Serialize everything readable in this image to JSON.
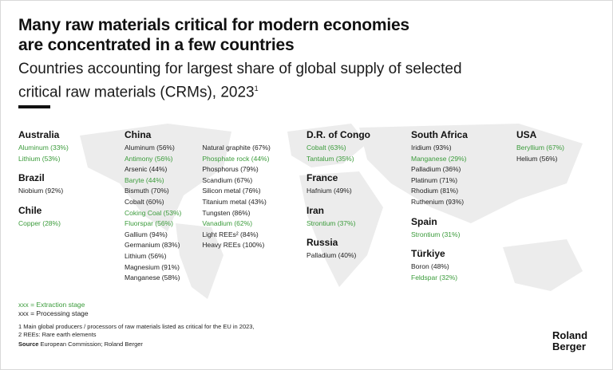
{
  "header": {
    "title_line1": "Many raw materials critical for modern economies",
    "title_line2": "are concentrated in a few countries",
    "subtitle_line1": "Countries accounting for largest share of global supply of selected",
    "subtitle_line2": "critical raw materials (CRMs), 2023",
    "subtitle_sup": "1"
  },
  "colors": {
    "extraction": "#3a9b3a",
    "processing": "#222222",
    "map": "#ececec"
  },
  "col1": [
    {
      "country": "Australia",
      "materials": [
        {
          "text": "Aluminum (33%)",
          "stage": "extraction"
        },
        {
          "text": "Lithium (53%)",
          "stage": "extraction"
        }
      ]
    },
    {
      "country": "Brazil",
      "materials": [
        {
          "text": "Niobium (92%)",
          "stage": "processing"
        }
      ]
    },
    {
      "country": "Chile",
      "materials": [
        {
          "text": "Copper (28%)",
          "stage": "extraction"
        }
      ]
    }
  ],
  "china": {
    "country": "China",
    "left": [
      {
        "text": "Aluminum (56%)",
        "stage": "processing"
      },
      {
        "text": "Antimony (56%)",
        "stage": "extraction"
      },
      {
        "text": "Arsenic (44%)",
        "stage": "processing"
      },
      {
        "text": "Baryte (44%)",
        "stage": "extraction"
      },
      {
        "text": "Bismuth (70%)",
        "stage": "processing"
      },
      {
        "text": "Cobalt (60%)",
        "stage": "processing"
      },
      {
        "text": "Coking Coal (53%)",
        "stage": "extraction"
      },
      {
        "text": "Fluorspar (56%)",
        "stage": "extraction"
      },
      {
        "text": "Gallium (94%)",
        "stage": "processing"
      },
      {
        "text": "Germanium (83%)",
        "stage": "processing"
      },
      {
        "text": "Lithium (56%)",
        "stage": "processing"
      },
      {
        "text": "Magnesium (91%)",
        "stage": "processing"
      },
      {
        "text": "Manganese (58%)",
        "stage": "processing"
      }
    ],
    "right": [
      {
        "text": "Natural graphite (67%)",
        "stage": "processing"
      },
      {
        "text": "Phosphate rock (44%)",
        "stage": "extraction"
      },
      {
        "text": "Phosphorus (79%)",
        "stage": "processing"
      },
      {
        "text": "Scandium (67%)",
        "stage": "processing"
      },
      {
        "text": "Silicon metal (76%)",
        "stage": "processing"
      },
      {
        "text": "Titanium metal (43%)",
        "stage": "processing"
      },
      {
        "text": "Tungsten (86%)",
        "stage": "processing"
      },
      {
        "text": "Vanadium (62%)",
        "stage": "extraction"
      },
      {
        "text": "Light REEs² (84%)",
        "stage": "processing"
      },
      {
        "text": "Heavy REEs (100%)",
        "stage": "processing"
      }
    ]
  },
  "col4": [
    {
      "country": "D.R. of Congo",
      "materials": [
        {
          "text": "Cobalt (63%)",
          "stage": "extraction"
        },
        {
          "text": "Tantalum (35%)",
          "stage": "extraction"
        }
      ]
    },
    {
      "country": "France",
      "materials": [
        {
          "text": "Hafnium (49%)",
          "stage": "processing"
        }
      ]
    },
    {
      "country": "Iran",
      "materials": [
        {
          "text": "Strontium (37%)",
          "stage": "extraction"
        }
      ]
    },
    {
      "country": "Russia",
      "materials": [
        {
          "text": "Palladium (40%)",
          "stage": "processing"
        }
      ]
    }
  ],
  "col5": [
    {
      "country": "South Africa",
      "materials": [
        {
          "text": "Iridium (93%)",
          "stage": "processing"
        },
        {
          "text": "Manganese (29%)",
          "stage": "extraction"
        },
        {
          "text": "Palladium (36%)",
          "stage": "processing"
        },
        {
          "text": "Platinum (71%)",
          "stage": "processing"
        },
        {
          "text": "Rhodium (81%)",
          "stage": "processing"
        },
        {
          "text": "Ruthenium (93%)",
          "stage": "processing"
        }
      ]
    },
    {
      "country": "Spain",
      "materials": [
        {
          "text": "Strontium (31%)",
          "stage": "extraction"
        }
      ]
    },
    {
      "country": "Türkiye",
      "materials": [
        {
          "text": "Boron (48%)",
          "stage": "processing"
        },
        {
          "text": "Feldspar (32%)",
          "stage": "extraction"
        }
      ]
    }
  ],
  "col6": [
    {
      "country": "USA",
      "materials": [
        {
          "text": "Beryllium (67%)",
          "stage": "extraction"
        },
        {
          "text": "Helium (56%)",
          "stage": "processing"
        }
      ]
    }
  ],
  "legend": {
    "extraction": "xxx = Extraction stage",
    "processing": "xxx = Processing stage"
  },
  "footnotes": {
    "note1": "1  Main global producers / processors of raw materials listed as critical for the EU in 2023,",
    "note2": "2  REEs: Rare earth elements",
    "source_label": "Source",
    "source_text": "European Commission; Roland Berger"
  },
  "logo": {
    "line1": "Roland",
    "line2": "Berger"
  }
}
